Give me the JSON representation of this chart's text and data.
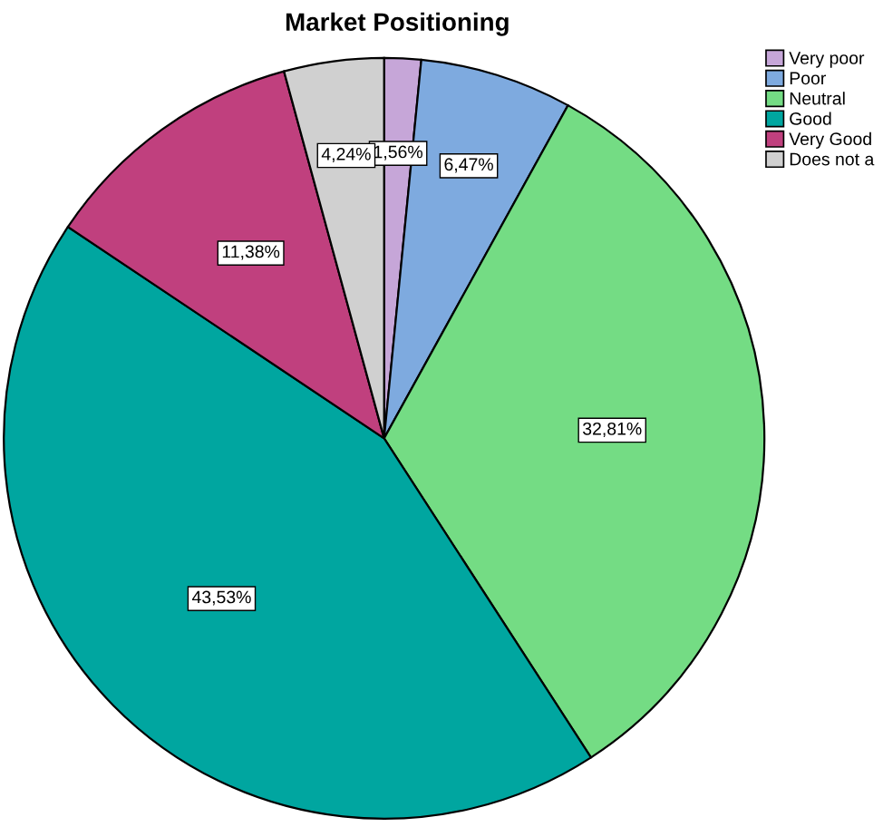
{
  "chart_data": {
    "type": "pie",
    "title": "Market Positioning",
    "categories": [
      "Very poor",
      "Poor",
      "Neutral",
      "Good",
      "Very Good",
      "Does not a"
    ],
    "values": [
      1.56,
      6.47,
      32.81,
      43.53,
      11.38,
      4.24
    ],
    "value_labels": [
      "1,56%",
      "6,47%",
      "32,81%",
      "43,53%",
      "11,38%",
      "4,24%"
    ],
    "colors": [
      "#c6a6d8",
      "#7eaadf",
      "#74dc84",
      "#00a6a0",
      "#c0407e",
      "#d0d0d0"
    ],
    "legend": "top right"
  }
}
